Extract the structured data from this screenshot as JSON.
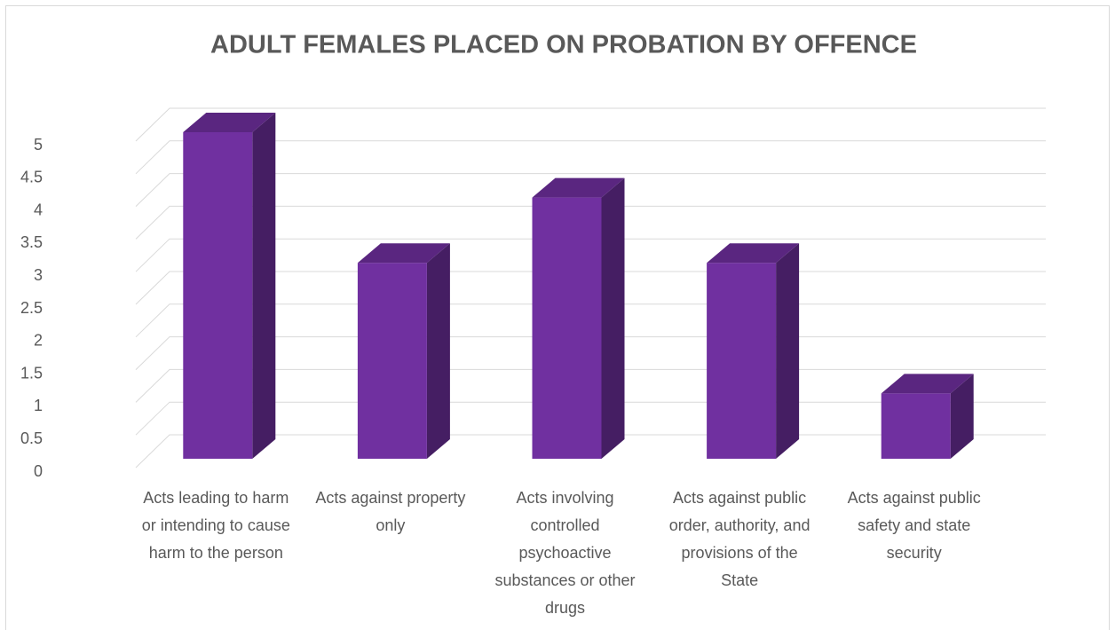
{
  "chart_data": {
    "type": "bar",
    "title": "ADULT FEMALES PLACED ON PROBATION BY OFFENCE",
    "categories": [
      "Acts leading to harm or intending to cause harm to the person",
      "Acts against property only",
      "Acts involving controlled psychoactive substances or other drugs",
      "Acts against public order, authority, and provisions of the State",
      "Acts against public safety and state security"
    ],
    "values": [
      5,
      3,
      4,
      3,
      1
    ],
    "color": "#7030a0",
    "ylim": [
      0,
      5
    ],
    "yticks": [
      0,
      0.5,
      1,
      1.5,
      2,
      2.5,
      3,
      3.5,
      4,
      4.5,
      5
    ],
    "grid": true
  }
}
